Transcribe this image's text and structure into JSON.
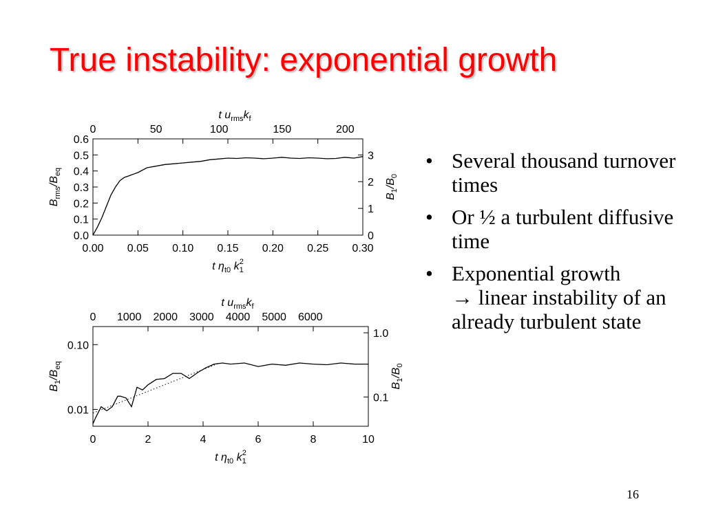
{
  "title": "True instability: exponential growth",
  "bullets": [
    {
      "text": "Several thousand turnover times"
    },
    {
      "text": "Or ½ a turbulent diffusive time"
    },
    {
      "text": "Exponential growth  linear instability of an already turbulent state",
      "arrow_after": "Exponential growth",
      "arrow": "→",
      "rest": "linear instability of an already turbulent state"
    }
  ],
  "bullet_symbol": "•",
  "page_number": "16",
  "colors": {
    "title": "#ff0000",
    "text": "#000000"
  },
  "chart_data": [
    {
      "type": "line",
      "x": [
        0.0,
        0.005,
        0.01,
        0.015,
        0.02,
        0.025,
        0.03,
        0.035,
        0.04,
        0.045,
        0.05,
        0.06,
        0.07,
        0.08,
        0.09,
        0.1,
        0.11,
        0.12,
        0.13,
        0.14,
        0.15,
        0.16,
        0.17,
        0.18,
        0.19,
        0.2,
        0.21,
        0.22,
        0.23,
        0.24,
        0.25,
        0.26,
        0.27,
        0.28,
        0.29,
        0.3
      ],
      "series": [
        {
          "values": [
            0.0,
            0.05,
            0.11,
            0.18,
            0.25,
            0.3,
            0.34,
            0.36,
            0.37,
            0.38,
            0.39,
            0.42,
            0.43,
            0.44,
            0.445,
            0.45,
            0.455,
            0.46,
            0.47,
            0.475,
            0.48,
            0.478,
            0.482,
            0.48,
            0.476,
            0.48,
            0.485,
            0.48,
            0.478,
            0.482,
            0.48,
            0.476,
            0.478,
            0.485,
            0.48,
            0.49
          ]
        }
      ],
      "xlabel": {
        "var": "t",
        "sym": "η",
        "sub": "t0",
        "k": "k",
        "ksub": "1",
        "ksup": "2"
      },
      "ylabel": {
        "num": "B",
        "numsub": "rms",
        "den": "B",
        "densub": "eq"
      },
      "ylabel_right": {
        "num": "B",
        "numsub": "1",
        "den": "B",
        "densub": "0"
      },
      "xlabel_top": {
        "var": "t",
        "sym": "u",
        "sub": "rms",
        "k": "k",
        "ksub": "f"
      },
      "xlim": [
        0.0,
        0.3
      ],
      "ylim": [
        0.0,
        0.6
      ],
      "xticks": [
        "0.00",
        "0.05",
        "0.10",
        "0.15",
        "0.20",
        "0.25",
        "0.30"
      ],
      "yticks": [
        "0.0",
        "0.1",
        "0.2",
        "0.3",
        "0.4",
        "0.5",
        "0.6"
      ],
      "xticks_top": [
        "0",
        "50",
        "100",
        "150",
        "200"
      ],
      "xlim_top": [
        0,
        214
      ],
      "yticks_right": [
        "0",
        "1",
        "2",
        "3"
      ],
      "ylim_right": [
        0,
        3.6
      ]
    },
    {
      "type": "line",
      "yscale": "log",
      "x": [
        0.0,
        0.1,
        0.3,
        0.5,
        0.7,
        0.9,
        1.0,
        1.2,
        1.4,
        1.6,
        1.8,
        2.0,
        2.3,
        2.6,
        2.9,
        3.2,
        3.5,
        3.8,
        4.1,
        4.4,
        4.7,
        5.0,
        5.5,
        6.0,
        6.5,
        7.0,
        7.5,
        8.0,
        8.5,
        9.0,
        9.5,
        10.0
      ],
      "series": [
        {
          "values": [
            0.006,
            0.0075,
            0.011,
            0.0095,
            0.011,
            0.016,
            0.016,
            0.015,
            0.011,
            0.022,
            0.02,
            0.024,
            0.029,
            0.03,
            0.036,
            0.036,
            0.03,
            0.037,
            0.044,
            0.05,
            0.052,
            0.05,
            0.052,
            0.046,
            0.05,
            0.048,
            0.052,
            0.05,
            0.049,
            0.052,
            0.05,
            0.05
          ]
        },
        {
          "values": [
            0.0088,
            0.052
          ],
          "x": [
            0.0,
            4.6
          ],
          "style": "dotted"
        }
      ],
      "xlabel": {
        "var": "t",
        "sym": "η",
        "sub": "t0",
        "k": "k",
        "ksub": "1",
        "ksup": "2"
      },
      "ylabel": {
        "num": "B",
        "numsub": "1",
        "den": "B",
        "densub": "eq"
      },
      "ylabel_right": {
        "num": "B",
        "numsub": "1",
        "den": "B",
        "densub": "0"
      },
      "xlabel_top": {
        "var": "t",
        "sym": "u",
        "sub": "rms",
        "k": "k",
        "ksub": "f"
      },
      "xlim": [
        0,
        10
      ],
      "ylim": [
        0.0055,
        0.19
      ],
      "xticks": [
        "0",
        "2",
        "4",
        "6",
        "8",
        "10"
      ],
      "yticks": [
        "0.01",
        "0.10"
      ],
      "xticks_top": [
        "0",
        "1000",
        "2000",
        "3000",
        "4000",
        "5000",
        "6000"
      ],
      "xlim_top": [
        0,
        7600
      ],
      "yticks_right": [
        "0.1",
        "1.0"
      ],
      "ylim_right": [
        0.035,
        1.25
      ]
    }
  ]
}
